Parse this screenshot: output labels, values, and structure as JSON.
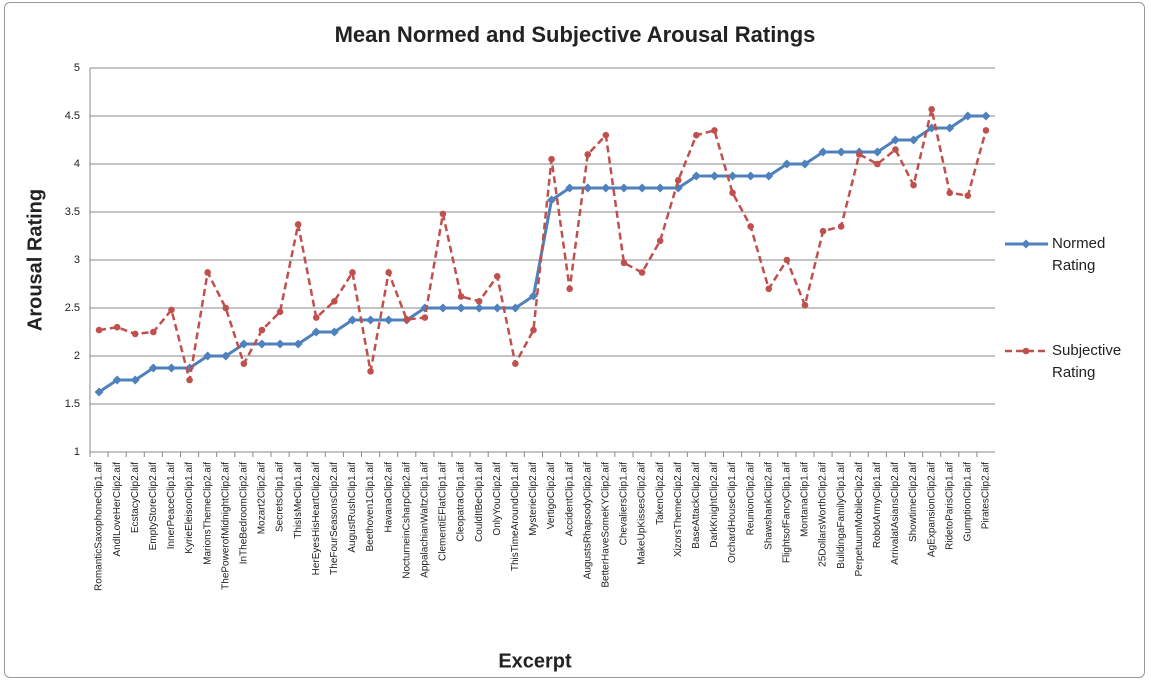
{
  "chart_data": {
    "type": "line",
    "title": "Mean Normed and Subjective Arousal Ratings",
    "x_label": "Excerpt",
    "y_label": "Arousal Rating",
    "categories": [
      "RomanticSaxophoneClip1.aif",
      "AndILoveHerClip2.aif",
      "EcstacyClip2.aif",
      "EmptyStoreClip2.aif",
      "InnerPeaceClip1.aif",
      "KyrieEleisonClip1.aif",
      "MarionsThemeClip2.aif",
      "ThePowerofMidnightClip2.aif",
      "InTheBedroomClip2.aif",
      "Mozart2Clip2.aif",
      "SecretsClip1.aif",
      "ThisIsMeClip1.aif",
      "HerEyesHisHeartClip2.aif",
      "TheFourSeasonsClip2.aif",
      "AugustRushClip1.aif",
      "Beethoven1Clip1.aif",
      "HavanaClip2.aif",
      "NocturneinCsharpClip2.aif",
      "AppalachianWaltzClip1.aif",
      "ClementiEFlatClip1.aif",
      "CleopatraClip1.aif",
      "CouldItBeClip1.aif",
      "OnlyYouClip2.aif",
      "ThisTimeAroundClip1.aif",
      "MysterieClip2.aif",
      "VertigoClip2.aif",
      "AccidentClip1.aif",
      "AugustsRhapsodyClip2.aif",
      "BetterHaveSomeKYClip2.aif",
      "ChevaliersClip1.aif",
      "MakeUpKissesClip2.aif",
      "TakenClip2.aif",
      "XizorsThemeClip2.aif",
      "BaseAttackClip2.aif",
      "DarkKnightClip2.aif",
      "OrchardHouseClip1.aif",
      "ReunionClip2.aif",
      "ShawshankClip2.aif",
      "FlightsofFancyClip1.aif",
      "MontanaClip1.aif",
      "25DollarsWorthClip2.aif",
      "BuildingaFamilyClip1.aif",
      "PerpetuumMobileClip2.aif",
      "RobotArmyClip1.aif",
      "ArrivalatAsiansClip2.aif",
      "ShowtimeClip2.aif",
      "AgExpansionClip2.aif",
      "RidetoParisClip1.aif",
      "GumptionClip1.aif",
      "PiratesClip2.aif"
    ],
    "series": [
      {
        "name": "Normed Rating",
        "color": "#4f81bd",
        "marker": "diamond",
        "dashed": false,
        "values": [
          1.625,
          1.75,
          1.75,
          1.875,
          1.875,
          1.875,
          2,
          2,
          2.125,
          2.125,
          2.125,
          2.125,
          2.25,
          2.25,
          2.375,
          2.375,
          2.375,
          2.375,
          2.5,
          2.5,
          2.5,
          2.5,
          2.5,
          2.5,
          2.625,
          3.625,
          3.75,
          3.75,
          3.75,
          3.75,
          3.75,
          3.75,
          3.75,
          3.875,
          3.875,
          3.875,
          3.875,
          3.875,
          4,
          4,
          4.125,
          4.125,
          4.125,
          4.125,
          4.25,
          4.25,
          4.375,
          4.375,
          4.5,
          4.5
        ]
      },
      {
        "name": "Subjective Rating",
        "color": "#c0504d",
        "marker": "circle",
        "dashed": true,
        "values": [
          2.27,
          2.3,
          2.23,
          2.25,
          2.48,
          1.75,
          2.87,
          2.5,
          1.92,
          2.27,
          2.46,
          3.37,
          2.4,
          2.57,
          2.87,
          1.84,
          2.87,
          2.38,
          2.4,
          3.48,
          2.62,
          2.57,
          2.83,
          1.92,
          2.27,
          4.05,
          2.7,
          4.1,
          4.3,
          2.97,
          2.87,
          3.2,
          3.83,
          4.3,
          4.35,
          3.7,
          3.35,
          2.7,
          3.0,
          2.53,
          3.3,
          3.35,
          4.1,
          4.0,
          4.15,
          3.78,
          4.57,
          3.7,
          3.67,
          4.35
        ]
      }
    ],
    "ylim": [
      1,
      5
    ],
    "yticks": [
      1,
      1.5,
      2,
      2.5,
      3,
      3.5,
      4,
      4.5,
      5
    ],
    "grid": true,
    "legend": "right"
  }
}
